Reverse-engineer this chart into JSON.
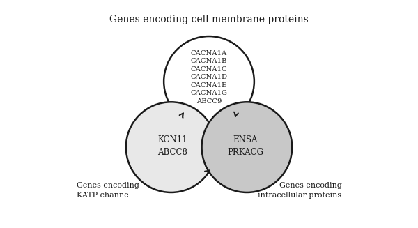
{
  "title": "Genes encoding cell membrane proteins",
  "bg_color": "#ffffff",
  "top_petal_label": "CACNA1A\nCACNA1B\nCACNA1C\nCACNA1D\nCACNA1E\nCACNA1G\nABCC9",
  "left_petal_label": "KCN11\nABCC8",
  "right_petal_label": "ENSA\nPRKACG",
  "bottom_left_text": "Genes encoding\nKATP channel",
  "bottom_right_text": "Genes encoding\nintracellular proteins",
  "top_petal_color": "#ffffff",
  "left_petal_color": "#e8e8e8",
  "right_petal_color": "#c8c8c8",
  "edge_color": "#1a1a1a",
  "text_color": "#1a1a1a",
  "figsize": [
    6.0,
    3.27
  ],
  "dpi": 100
}
